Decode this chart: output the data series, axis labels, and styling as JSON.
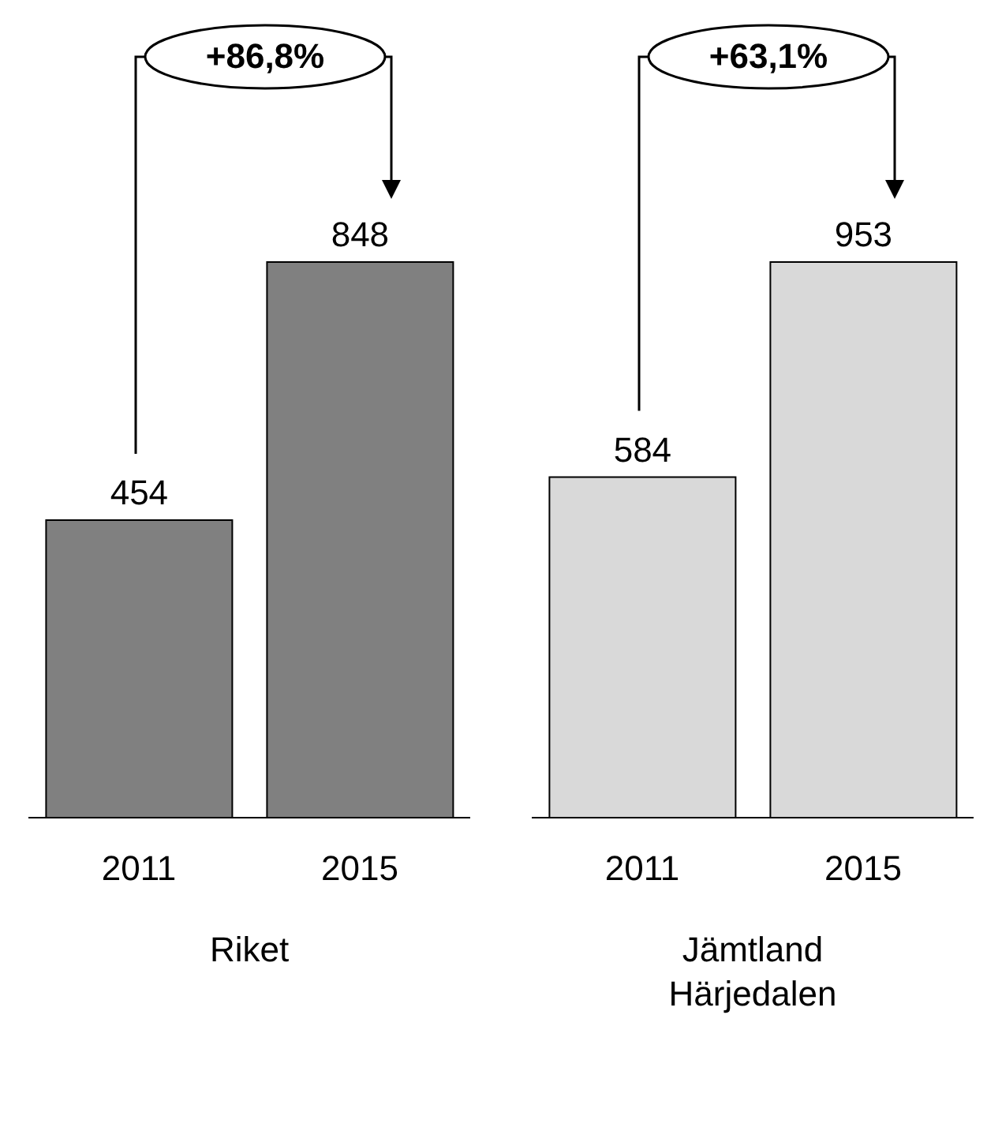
{
  "chart_data": [
    {
      "type": "bar",
      "categories": [
        "2011",
        "2015"
      ],
      "values": [
        454,
        848
      ],
      "color": "#808080",
      "data_labels": true,
      "xlabel": "Riket",
      "annotations": [
        "+86,8%"
      ]
    },
    {
      "type": "bar",
      "categories": [
        "2011",
        "2015"
      ],
      "values": [
        584,
        953
      ],
      "color": "#d9d9d9",
      "data_labels": true,
      "xlabel": "Jämtland\nHärjedalen",
      "annotations": [
        "+63,1%"
      ]
    }
  ]
}
